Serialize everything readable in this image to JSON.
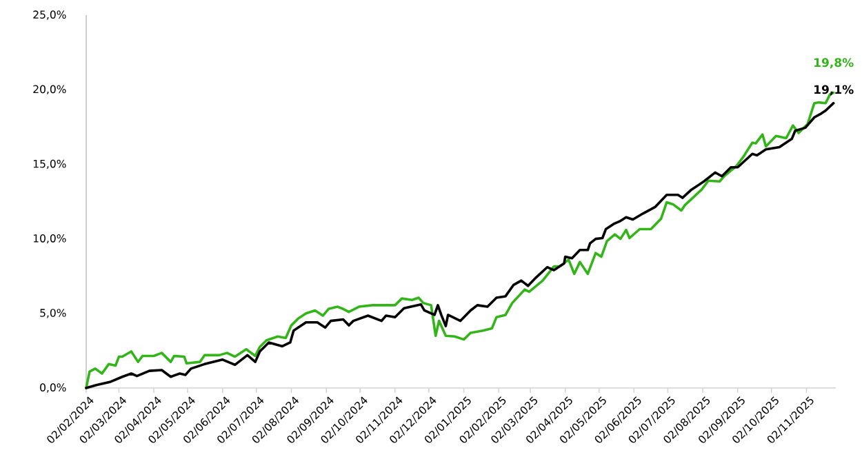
{
  "chart_data": {
    "type": "line",
    "xlim": [
      "2024-02-02",
      "2025-11-28"
    ],
    "ylim": [
      0,
      25
    ],
    "yticks": [
      {
        "value": 0,
        "label": "0,0%"
      },
      {
        "value": 5,
        "label": "5,0%"
      },
      {
        "value": 10,
        "label": "10,0%"
      },
      {
        "value": 15,
        "label": "15,0%"
      },
      {
        "value": 20,
        "label": "20,0%"
      },
      {
        "value": 25,
        "label": "25,0%"
      }
    ],
    "xticks": [
      {
        "value": "2024-02-02",
        "label": "02/02/2024"
      },
      {
        "value": "2024-03-02",
        "label": "02/03/2024"
      },
      {
        "value": "2024-04-02",
        "label": "02/04/2024"
      },
      {
        "value": "2024-05-02",
        "label": "02/05/2024"
      },
      {
        "value": "2024-06-02",
        "label": "02/06/2024"
      },
      {
        "value": "2024-07-02",
        "label": "02/07/2024"
      },
      {
        "value": "2024-08-02",
        "label": "02/08/2024"
      },
      {
        "value": "2024-09-02",
        "label": "02/09/2024"
      },
      {
        "value": "2024-10-02",
        "label": "02/10/2024"
      },
      {
        "value": "2024-11-02",
        "label": "02/11/2024"
      },
      {
        "value": "2024-12-02",
        "label": "02/12/2024"
      },
      {
        "value": "2025-01-02",
        "label": "02/01/2025"
      },
      {
        "value": "2025-02-02",
        "label": "02/02/2025"
      },
      {
        "value": "2025-03-02",
        "label": "02/03/2025"
      },
      {
        "value": "2025-04-02",
        "label": "02/04/2025"
      },
      {
        "value": "2025-05-02",
        "label": "02/05/2025"
      },
      {
        "value": "2025-06-02",
        "label": "02/06/2025"
      },
      {
        "value": "2025-07-02",
        "label": "02/07/2025"
      },
      {
        "value": "2025-08-02",
        "label": "02/08/2025"
      },
      {
        "value": "2025-09-02",
        "label": "02/09/2025"
      },
      {
        "value": "2025-10-02",
        "label": "02/10/2025"
      },
      {
        "value": "2025-11-02",
        "label": "02/11/2025"
      }
    ],
    "series": [
      {
        "color": "#33b51a",
        "x": [
          "2024-02-02",
          "2024-02-05",
          "2024-02-10",
          "2024-02-16",
          "2024-02-22",
          "2024-02-28",
          "2024-03-02",
          "2024-03-05",
          "2024-03-13",
          "2024-03-19",
          "2024-03-23",
          "2024-04-02",
          "2024-04-09",
          "2024-04-17",
          "2024-04-20",
          "2024-04-29",
          "2024-05-01",
          "2024-05-13",
          "2024-05-17",
          "2024-05-30",
          "2024-06-06",
          "2024-06-13",
          "2024-06-23",
          "2024-07-01",
          "2024-07-05",
          "2024-07-11",
          "2024-07-21",
          "2024-07-28",
          "2024-08-02",
          "2024-08-08",
          "2024-08-15",
          "2024-08-23",
          "2024-08-30",
          "2024-09-04",
          "2024-09-12",
          "2024-09-17",
          "2024-09-22",
          "2024-10-01",
          "2024-10-13",
          "2024-10-25",
          "2024-11-02",
          "2024-11-08",
          "2024-11-17",
          "2024-11-23",
          "2024-11-27",
          "2024-12-04",
          "2024-12-08",
          "2024-12-11",
          "2024-12-17",
          "2024-12-25",
          "2025-01-02",
          "2025-01-08",
          "2025-01-19",
          "2025-01-27",
          "2025-01-31",
          "2025-02-08",
          "2025-02-14",
          "2025-02-25",
          "2025-03-01",
          "2025-03-13",
          "2025-03-23",
          "2025-03-28",
          "2025-04-05",
          "2025-04-10",
          "2025-04-15",
          "2025-04-22",
          "2025-04-29",
          "2025-05-04",
          "2025-05-09",
          "2025-05-16",
          "2025-05-21",
          "2025-05-26",
          "2025-05-29",
          "2025-06-07",
          "2025-06-17",
          "2025-06-26",
          "2025-07-01",
          "2025-07-07",
          "2025-07-14",
          "2025-07-17",
          "2025-07-22",
          "2025-08-01",
          "2025-08-07",
          "2025-08-17",
          "2025-08-21",
          "2025-09-01",
          "2025-09-07",
          "2025-09-15",
          "2025-09-18",
          "2025-09-24",
          "2025-09-27",
          "2025-10-06",
          "2025-10-15",
          "2025-10-21",
          "2025-10-26",
          "2025-11-03",
          "2025-11-09",
          "2025-11-13",
          "2025-11-19",
          "2025-11-23",
          "2025-11-26"
        ],
        "values": [
          0,
          1.1,
          1.3,
          0.97,
          1.6,
          1.5,
          2.1,
          2.1,
          2.45,
          1.75,
          2.15,
          2.15,
          2.35,
          1.75,
          2.15,
          2.1,
          1.65,
          1.75,
          2.2,
          2.2,
          2.35,
          2.1,
          2.6,
          2.15,
          2.75,
          3.2,
          3.45,
          3.35,
          4.2,
          4.65,
          5.0,
          5.2,
          4.85,
          5.3,
          5.45,
          5.3,
          5.1,
          5.45,
          5.55,
          5.55,
          5.55,
          6.0,
          5.9,
          6.05,
          5.7,
          5.55,
          3.5,
          4.5,
          3.5,
          3.45,
          3.25,
          3.7,
          3.85,
          4.0,
          4.75,
          4.9,
          5.7,
          6.6,
          6.45,
          7.2,
          8.15,
          8.15,
          8.6,
          7.65,
          8.45,
          7.65,
          9.05,
          8.8,
          9.85,
          10.3,
          10.0,
          10.6,
          10.05,
          10.65,
          10.65,
          11.35,
          12.45,
          12.3,
          11.9,
          12.25,
          12.6,
          13.3,
          13.9,
          13.85,
          14.2,
          14.9,
          15.5,
          16.45,
          16.4,
          17.0,
          16.2,
          16.9,
          16.75,
          17.6,
          17.1,
          17.7,
          19.1,
          19.15,
          19.1,
          19.7,
          19.8
        ]
      },
      {
        "color": "#000000",
        "x": [
          "2024-02-02",
          "2024-02-11",
          "2024-02-23",
          "2024-03-05",
          "2024-03-13",
          "2024-03-18",
          "2024-03-29",
          "2024-04-09",
          "2024-04-17",
          "2024-04-25",
          "2024-04-30",
          "2024-05-05",
          "2024-05-17",
          "2024-06-02",
          "2024-06-13",
          "2024-06-24",
          "2024-07-01",
          "2024-07-05",
          "2024-07-13",
          "2024-07-25",
          "2024-08-01",
          "2024-08-04",
          "2024-08-15",
          "2024-08-25",
          "2024-09-01",
          "2024-09-06",
          "2024-09-17",
          "2024-09-22",
          "2024-09-26",
          "2024-10-09",
          "2024-10-21",
          "2024-10-25",
          "2024-11-02",
          "2024-11-10",
          "2024-11-25",
          "2024-11-28",
          "2024-12-07",
          "2024-12-10",
          "2024-12-13",
          "2024-12-17",
          "2024-12-19",
          "2024-12-30",
          "2025-01-08",
          "2025-01-14",
          "2025-01-23",
          "2025-01-31",
          "2025-02-08",
          "2025-02-15",
          "2025-02-22",
          "2025-02-28",
          "2025-03-07",
          "2025-03-17",
          "2025-03-23",
          "2025-04-01",
          "2025-04-02",
          "2025-04-08",
          "2025-04-15",
          "2025-04-22",
          "2025-04-24",
          "2025-04-29",
          "2025-05-05",
          "2025-05-08",
          "2025-05-15",
          "2025-05-21",
          "2025-05-26",
          "2025-06-01",
          "2025-06-10",
          "2025-06-21",
          "2025-07-01",
          "2025-07-11",
          "2025-07-15",
          "2025-07-23",
          "2025-08-03",
          "2025-08-13",
          "2025-08-19",
          "2025-08-27",
          "2025-09-02",
          "2025-09-15",
          "2025-09-19",
          "2025-09-27",
          "2025-10-09",
          "2025-10-14",
          "2025-10-20",
          "2025-10-23",
          "2025-11-01",
          "2025-11-09",
          "2025-11-15",
          "2025-11-19",
          "2025-11-26"
        ],
        "values": [
          0,
          0.2,
          0.4,
          0.75,
          0.97,
          0.8,
          1.15,
          1.2,
          0.75,
          0.97,
          0.88,
          1.3,
          1.6,
          1.9,
          1.55,
          2.2,
          1.75,
          2.45,
          3.05,
          2.8,
          3.05,
          3.85,
          4.4,
          4.4,
          4.05,
          4.5,
          4.6,
          4.2,
          4.5,
          4.85,
          4.5,
          4.85,
          4.75,
          5.35,
          5.6,
          5.2,
          4.9,
          5.55,
          4.9,
          4.15,
          4.9,
          4.5,
          5.2,
          5.55,
          5.45,
          6.05,
          6.15,
          6.9,
          7.2,
          6.85,
          7.4,
          8.1,
          7.9,
          8.35,
          8.8,
          8.7,
          9.25,
          9.25,
          9.7,
          10.0,
          10.05,
          10.65,
          11.0,
          11.2,
          11.45,
          11.3,
          11.7,
          12.15,
          12.95,
          12.95,
          12.75,
          13.3,
          13.85,
          14.45,
          14.2,
          14.8,
          14.8,
          15.7,
          15.6,
          16.0,
          16.15,
          16.4,
          16.7,
          17.25,
          17.45,
          18.15,
          18.4,
          18.6,
          19.1
        ]
      }
    ],
    "annotations": [
      {
        "text": "19,8%",
        "x": "2025-11-26",
        "y": 19.8
      },
      {
        "text": "19,1%",
        "x": "2025-11-26",
        "y": 19.1
      }
    ]
  }
}
